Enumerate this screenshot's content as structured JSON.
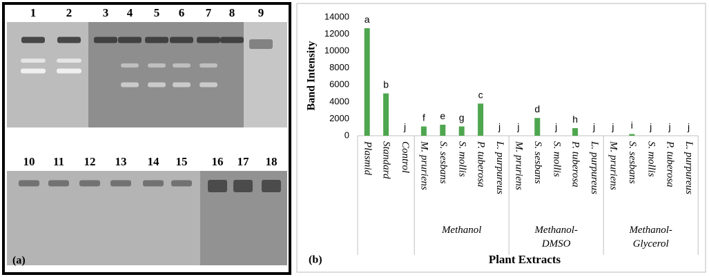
{
  "gel": {
    "lanes_top": [
      "1",
      "2",
      "3",
      "4",
      "5",
      "6",
      "7",
      "8",
      "9"
    ],
    "lanes_bottom": [
      "10",
      "11",
      "12",
      "13",
      "14",
      "15",
      "16",
      "17",
      "18"
    ],
    "panel_label": "(a)"
  },
  "chart_data": {
    "type": "bar",
    "panel_label": "(b)",
    "x_label": "Plant Extracts",
    "y_label": "Band Intensity",
    "color": "#4ea64e",
    "ylim": [
      0,
      14000
    ],
    "yticks": [
      0,
      2000,
      4000,
      6000,
      8000,
      10000,
      12000,
      14000
    ],
    "groups": [
      {
        "label": null,
        "categories": [
          "Plasmid",
          "Standard",
          "Control"
        ],
        "values": [
          12700,
          5000,
          0
        ],
        "letters": [
          "a",
          "b",
          "j"
        ]
      },
      {
        "label": "Methanol",
        "categories": [
          "M. pruriens",
          "S. sesbans",
          "S. mollis",
          "P. tuberosa",
          "L. purpureus"
        ],
        "values": [
          1100,
          1300,
          1100,
          3800,
          0
        ],
        "letters": [
          "f",
          "e",
          "g",
          "c",
          "j"
        ]
      },
      {
        "label": "Methanol-DMSO",
        "categories": [
          "M. pruriens",
          "S. sesbans",
          "S. mollis",
          "P. tuberosa",
          "L. purpureus"
        ],
        "values": [
          0,
          2100,
          0,
          900,
          0
        ],
        "letters": [
          "j",
          "d",
          "j",
          "h",
          "j"
        ]
      },
      {
        "label": "Methanol-Glycerol",
        "categories": [
          "M. pruriens",
          "S. sesbans",
          "S. mollis",
          "P. tuberosa",
          "L. purpureus"
        ],
        "values": [
          0,
          200,
          0,
          0,
          0
        ],
        "letters": [
          "j",
          "i",
          "j",
          "j",
          "j"
        ]
      }
    ]
  }
}
